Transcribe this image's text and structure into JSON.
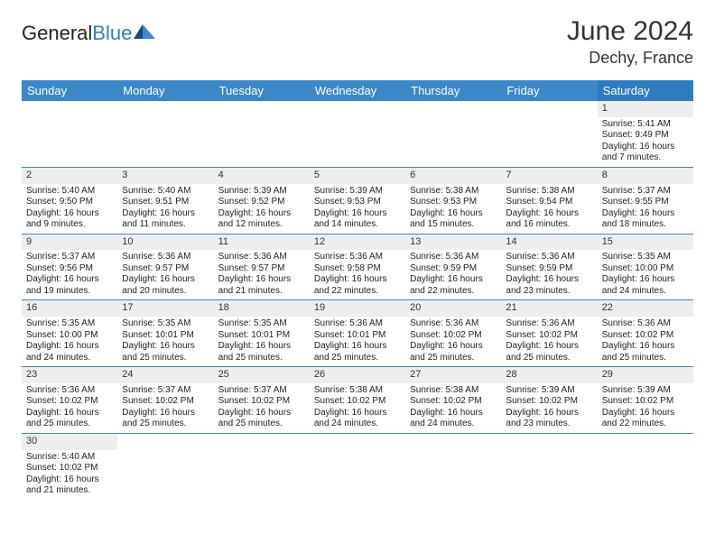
{
  "logo": {
    "part1": "General",
    "part2": "Blue"
  },
  "header": {
    "title": "June 2024",
    "subtitle": "Dechy, France"
  },
  "weekdays": [
    "Sunday",
    "Monday",
    "Tuesday",
    "Wednesday",
    "Thursday",
    "Friday",
    "Saturday"
  ],
  "colors": {
    "header_bg": "#3b87c8",
    "header_sat_bg": "#2f7bbf",
    "shade": "#eeeeee",
    "border": "#3b87c8",
    "text": "#222222"
  },
  "fonts": {
    "title_size": 30,
    "subtitle_size": 18,
    "day_text_size": 10,
    "weekday_size": 13
  },
  "weeks": [
    [
      null,
      null,
      null,
      null,
      null,
      null,
      {
        "day": "1",
        "sunrise": "Sunrise: 5:41 AM",
        "sunset": "Sunset: 9:49 PM",
        "daylight": "Daylight: 16 hours and 7 minutes."
      }
    ],
    [
      {
        "day": "2",
        "sunrise": "Sunrise: 5:40 AM",
        "sunset": "Sunset: 9:50 PM",
        "daylight": "Daylight: 16 hours and 9 minutes."
      },
      {
        "day": "3",
        "sunrise": "Sunrise: 5:40 AM",
        "sunset": "Sunset: 9:51 PM",
        "daylight": "Daylight: 16 hours and 11 minutes."
      },
      {
        "day": "4",
        "sunrise": "Sunrise: 5:39 AM",
        "sunset": "Sunset: 9:52 PM",
        "daylight": "Daylight: 16 hours and 12 minutes."
      },
      {
        "day": "5",
        "sunrise": "Sunrise: 5:39 AM",
        "sunset": "Sunset: 9:53 PM",
        "daylight": "Daylight: 16 hours and 14 minutes."
      },
      {
        "day": "6",
        "sunrise": "Sunrise: 5:38 AM",
        "sunset": "Sunset: 9:53 PM",
        "daylight": "Daylight: 16 hours and 15 minutes."
      },
      {
        "day": "7",
        "sunrise": "Sunrise: 5:38 AM",
        "sunset": "Sunset: 9:54 PM",
        "daylight": "Daylight: 16 hours and 16 minutes."
      },
      {
        "day": "8",
        "sunrise": "Sunrise: 5:37 AM",
        "sunset": "Sunset: 9:55 PM",
        "daylight": "Daylight: 16 hours and 18 minutes."
      }
    ],
    [
      {
        "day": "9",
        "sunrise": "Sunrise: 5:37 AM",
        "sunset": "Sunset: 9:56 PM",
        "daylight": "Daylight: 16 hours and 19 minutes."
      },
      {
        "day": "10",
        "sunrise": "Sunrise: 5:36 AM",
        "sunset": "Sunset: 9:57 PM",
        "daylight": "Daylight: 16 hours and 20 minutes."
      },
      {
        "day": "11",
        "sunrise": "Sunrise: 5:36 AM",
        "sunset": "Sunset: 9:57 PM",
        "daylight": "Daylight: 16 hours and 21 minutes."
      },
      {
        "day": "12",
        "sunrise": "Sunrise: 5:36 AM",
        "sunset": "Sunset: 9:58 PM",
        "daylight": "Daylight: 16 hours and 22 minutes."
      },
      {
        "day": "13",
        "sunrise": "Sunrise: 5:36 AM",
        "sunset": "Sunset: 9:59 PM",
        "daylight": "Daylight: 16 hours and 22 minutes."
      },
      {
        "day": "14",
        "sunrise": "Sunrise: 5:36 AM",
        "sunset": "Sunset: 9:59 PM",
        "daylight": "Daylight: 16 hours and 23 minutes."
      },
      {
        "day": "15",
        "sunrise": "Sunrise: 5:35 AM",
        "sunset": "Sunset: 10:00 PM",
        "daylight": "Daylight: 16 hours and 24 minutes."
      }
    ],
    [
      {
        "day": "16",
        "sunrise": "Sunrise: 5:35 AM",
        "sunset": "Sunset: 10:00 PM",
        "daylight": "Daylight: 16 hours and 24 minutes."
      },
      {
        "day": "17",
        "sunrise": "Sunrise: 5:35 AM",
        "sunset": "Sunset: 10:01 PM",
        "daylight": "Daylight: 16 hours and 25 minutes."
      },
      {
        "day": "18",
        "sunrise": "Sunrise: 5:35 AM",
        "sunset": "Sunset: 10:01 PM",
        "daylight": "Daylight: 16 hours and 25 minutes."
      },
      {
        "day": "19",
        "sunrise": "Sunrise: 5:36 AM",
        "sunset": "Sunset: 10:01 PM",
        "daylight": "Daylight: 16 hours and 25 minutes."
      },
      {
        "day": "20",
        "sunrise": "Sunrise: 5:36 AM",
        "sunset": "Sunset: 10:02 PM",
        "daylight": "Daylight: 16 hours and 25 minutes."
      },
      {
        "day": "21",
        "sunrise": "Sunrise: 5:36 AM",
        "sunset": "Sunset: 10:02 PM",
        "daylight": "Daylight: 16 hours and 25 minutes."
      },
      {
        "day": "22",
        "sunrise": "Sunrise: 5:36 AM",
        "sunset": "Sunset: 10:02 PM",
        "daylight": "Daylight: 16 hours and 25 minutes."
      }
    ],
    [
      {
        "day": "23",
        "sunrise": "Sunrise: 5:36 AM",
        "sunset": "Sunset: 10:02 PM",
        "daylight": "Daylight: 16 hours and 25 minutes."
      },
      {
        "day": "24",
        "sunrise": "Sunrise: 5:37 AM",
        "sunset": "Sunset: 10:02 PM",
        "daylight": "Daylight: 16 hours and 25 minutes."
      },
      {
        "day": "25",
        "sunrise": "Sunrise: 5:37 AM",
        "sunset": "Sunset: 10:02 PM",
        "daylight": "Daylight: 16 hours and 25 minutes."
      },
      {
        "day": "26",
        "sunrise": "Sunrise: 5:38 AM",
        "sunset": "Sunset: 10:02 PM",
        "daylight": "Daylight: 16 hours and 24 minutes."
      },
      {
        "day": "27",
        "sunrise": "Sunrise: 5:38 AM",
        "sunset": "Sunset: 10:02 PM",
        "daylight": "Daylight: 16 hours and 24 minutes."
      },
      {
        "day": "28",
        "sunrise": "Sunrise: 5:39 AM",
        "sunset": "Sunset: 10:02 PM",
        "daylight": "Daylight: 16 hours and 23 minutes."
      },
      {
        "day": "29",
        "sunrise": "Sunrise: 5:39 AM",
        "sunset": "Sunset: 10:02 PM",
        "daylight": "Daylight: 16 hours and 22 minutes."
      }
    ],
    [
      {
        "day": "30",
        "sunrise": "Sunrise: 5:40 AM",
        "sunset": "Sunset: 10:02 PM",
        "daylight": "Daylight: 16 hours and 21 minutes."
      },
      null,
      null,
      null,
      null,
      null,
      null
    ]
  ]
}
